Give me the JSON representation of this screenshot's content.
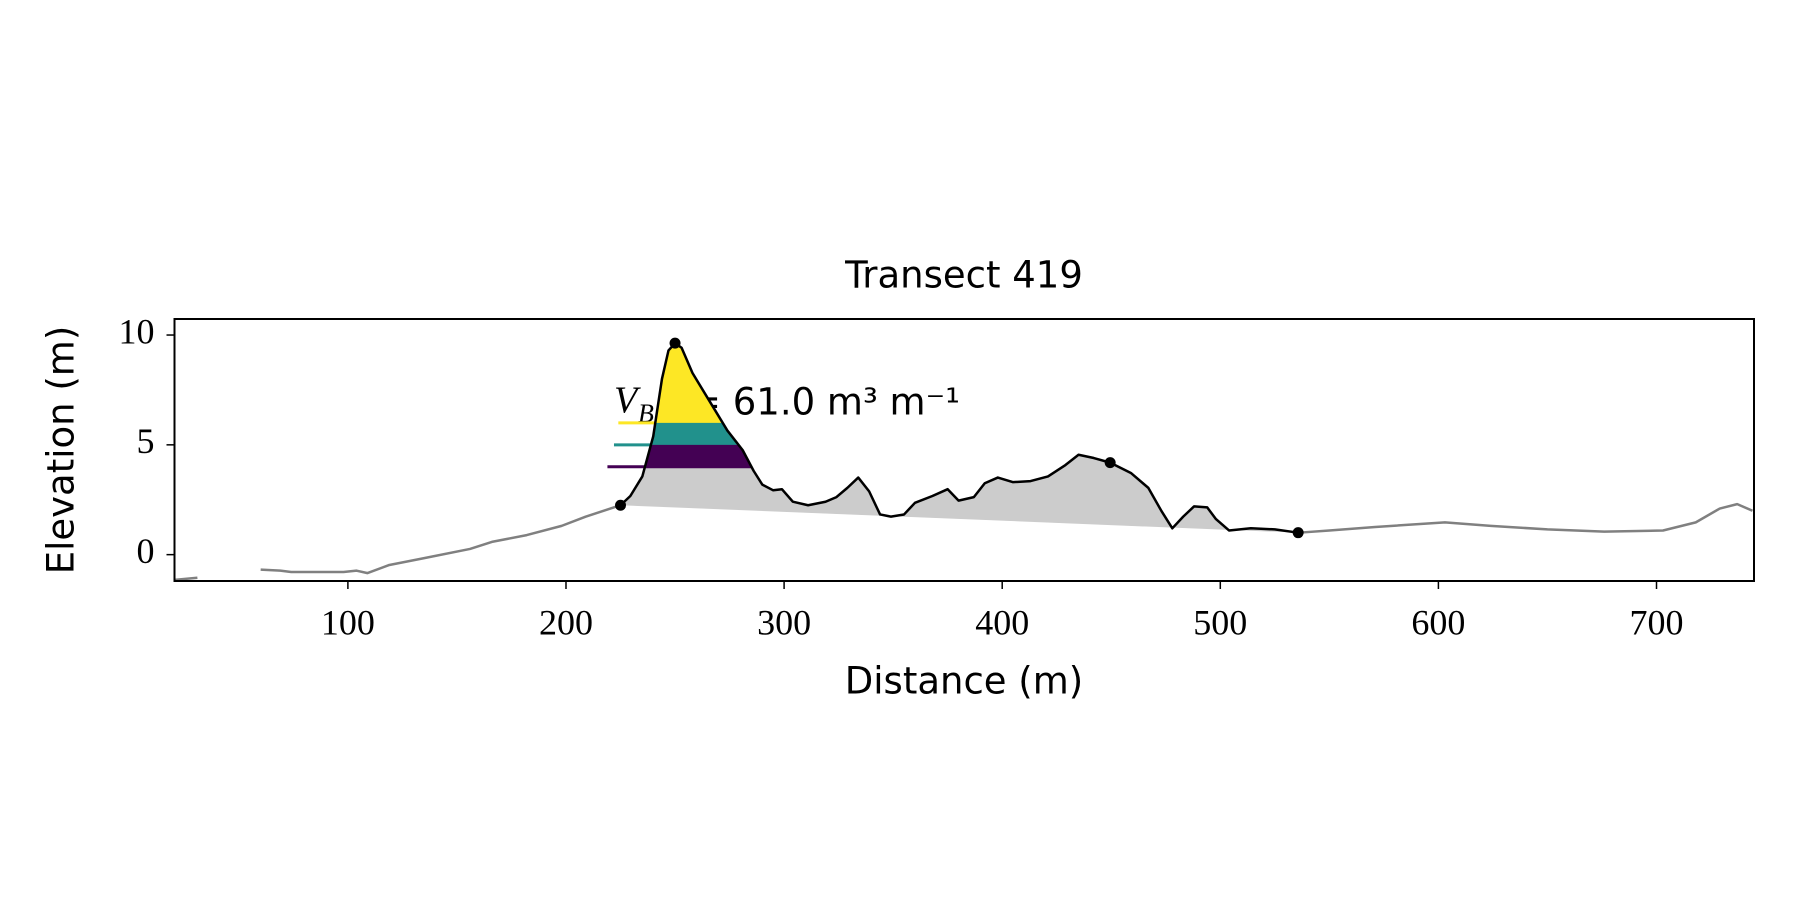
{
  "chart_data": {
    "type": "line",
    "title": "Transect 419",
    "x_label": "Distance (m)",
    "y_label": "Elevation (m)",
    "xlim": [
      20.5,
      744.7
    ],
    "ylim": [
      -1.2,
      10.73
    ],
    "xticks": [
      100,
      200,
      300,
      400,
      500,
      600,
      700
    ],
    "yticks": [
      0,
      5,
      10
    ],
    "grid": false,
    "profile": {
      "color": "#808080",
      "x": [
        20.5,
        31,
        45,
        60,
        69,
        74,
        98,
        104,
        109,
        119,
        135,
        156,
        166,
        182,
        198,
        209,
        225,
        380,
        536,
        550,
        571,
        603,
        624,
        650,
        676,
        703,
        718,
        729,
        737,
        744
      ],
      "y": [
        -1.15,
        -1.05,
        null,
        -0.68,
        -0.73,
        -0.79,
        -0.79,
        -0.73,
        -0.84,
        -0.47,
        -0.16,
        0.26,
        0.58,
        0.89,
        1.31,
        1.73,
        2.25,
        null,
        1.0,
        1.1,
        1.26,
        1.47,
        1.31,
        1.15,
        1.05,
        1.1,
        1.47,
        2.1,
        2.3,
        2.0
      ]
    },
    "dune": {
      "color": "#000000",
      "fill_color": "#cccccc",
      "x": [
        225,
        229.5,
        235,
        240,
        244,
        247,
        250,
        253,
        258,
        266,
        274,
        281,
        286,
        290,
        295,
        299,
        304,
        311,
        319,
        324,
        329,
        334,
        339,
        344,
        349,
        355,
        360,
        368,
        375,
        380,
        387,
        392,
        398,
        405,
        413,
        421,
        429,
        435,
        442,
        449.5,
        459,
        467,
        473,
        478,
        483,
        488,
        494,
        498,
        504,
        514,
        525,
        535.7
      ],
      "y": [
        2.25,
        2.67,
        3.56,
        5.39,
        8.0,
        9.3,
        9.63,
        9.42,
        8.27,
        6.96,
        5.65,
        4.76,
        3.82,
        3.19,
        2.93,
        2.98,
        2.41,
        2.25,
        2.41,
        2.62,
        3.04,
        3.51,
        2.88,
        1.83,
        1.73,
        1.83,
        2.36,
        2.67,
        2.98,
        2.46,
        2.62,
        3.25,
        3.51,
        3.3,
        3.35,
        3.56,
        4.08,
        4.55,
        4.4,
        4.19,
        3.72,
        3.04,
        1.99,
        1.2,
        1.73,
        2.2,
        2.15,
        1.62,
        1.1,
        1.2,
        1.15,
        1.0
      ]
    },
    "points": {
      "color": "#000000",
      "x": [
        225,
        250,
        449.5,
        535.7
      ],
      "y": [
        2.25,
        9.63,
        4.19,
        1.0
      ]
    },
    "levels": [
      {
        "value": 6,
        "x0": 224,
        "color": "#fde725"
      },
      {
        "value": 5,
        "x0": 222,
        "color": "#21918c"
      },
      {
        "value": 4,
        "x0": 219,
        "color": "#440154"
      }
    ],
    "annotation": {
      "symbol": "V",
      "subscript": "B",
      "text": "= 61.0 m³ m⁻¹"
    }
  }
}
